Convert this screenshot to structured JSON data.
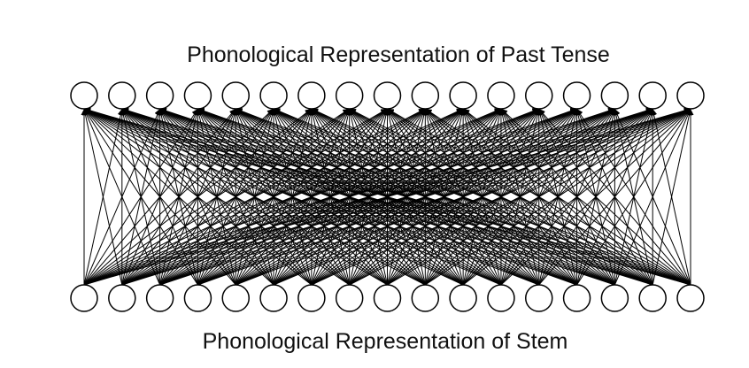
{
  "diagram": {
    "output_layer_label": "Phonological Representation of Past Tense",
    "input_layer_label": "Phonological Representation of Stem",
    "output_unit_count": 17,
    "input_unit_count": 17,
    "connectivity": "full",
    "connection_color": "#000000",
    "unit_fill": "#ffffff",
    "unit_stroke": "#000000"
  }
}
